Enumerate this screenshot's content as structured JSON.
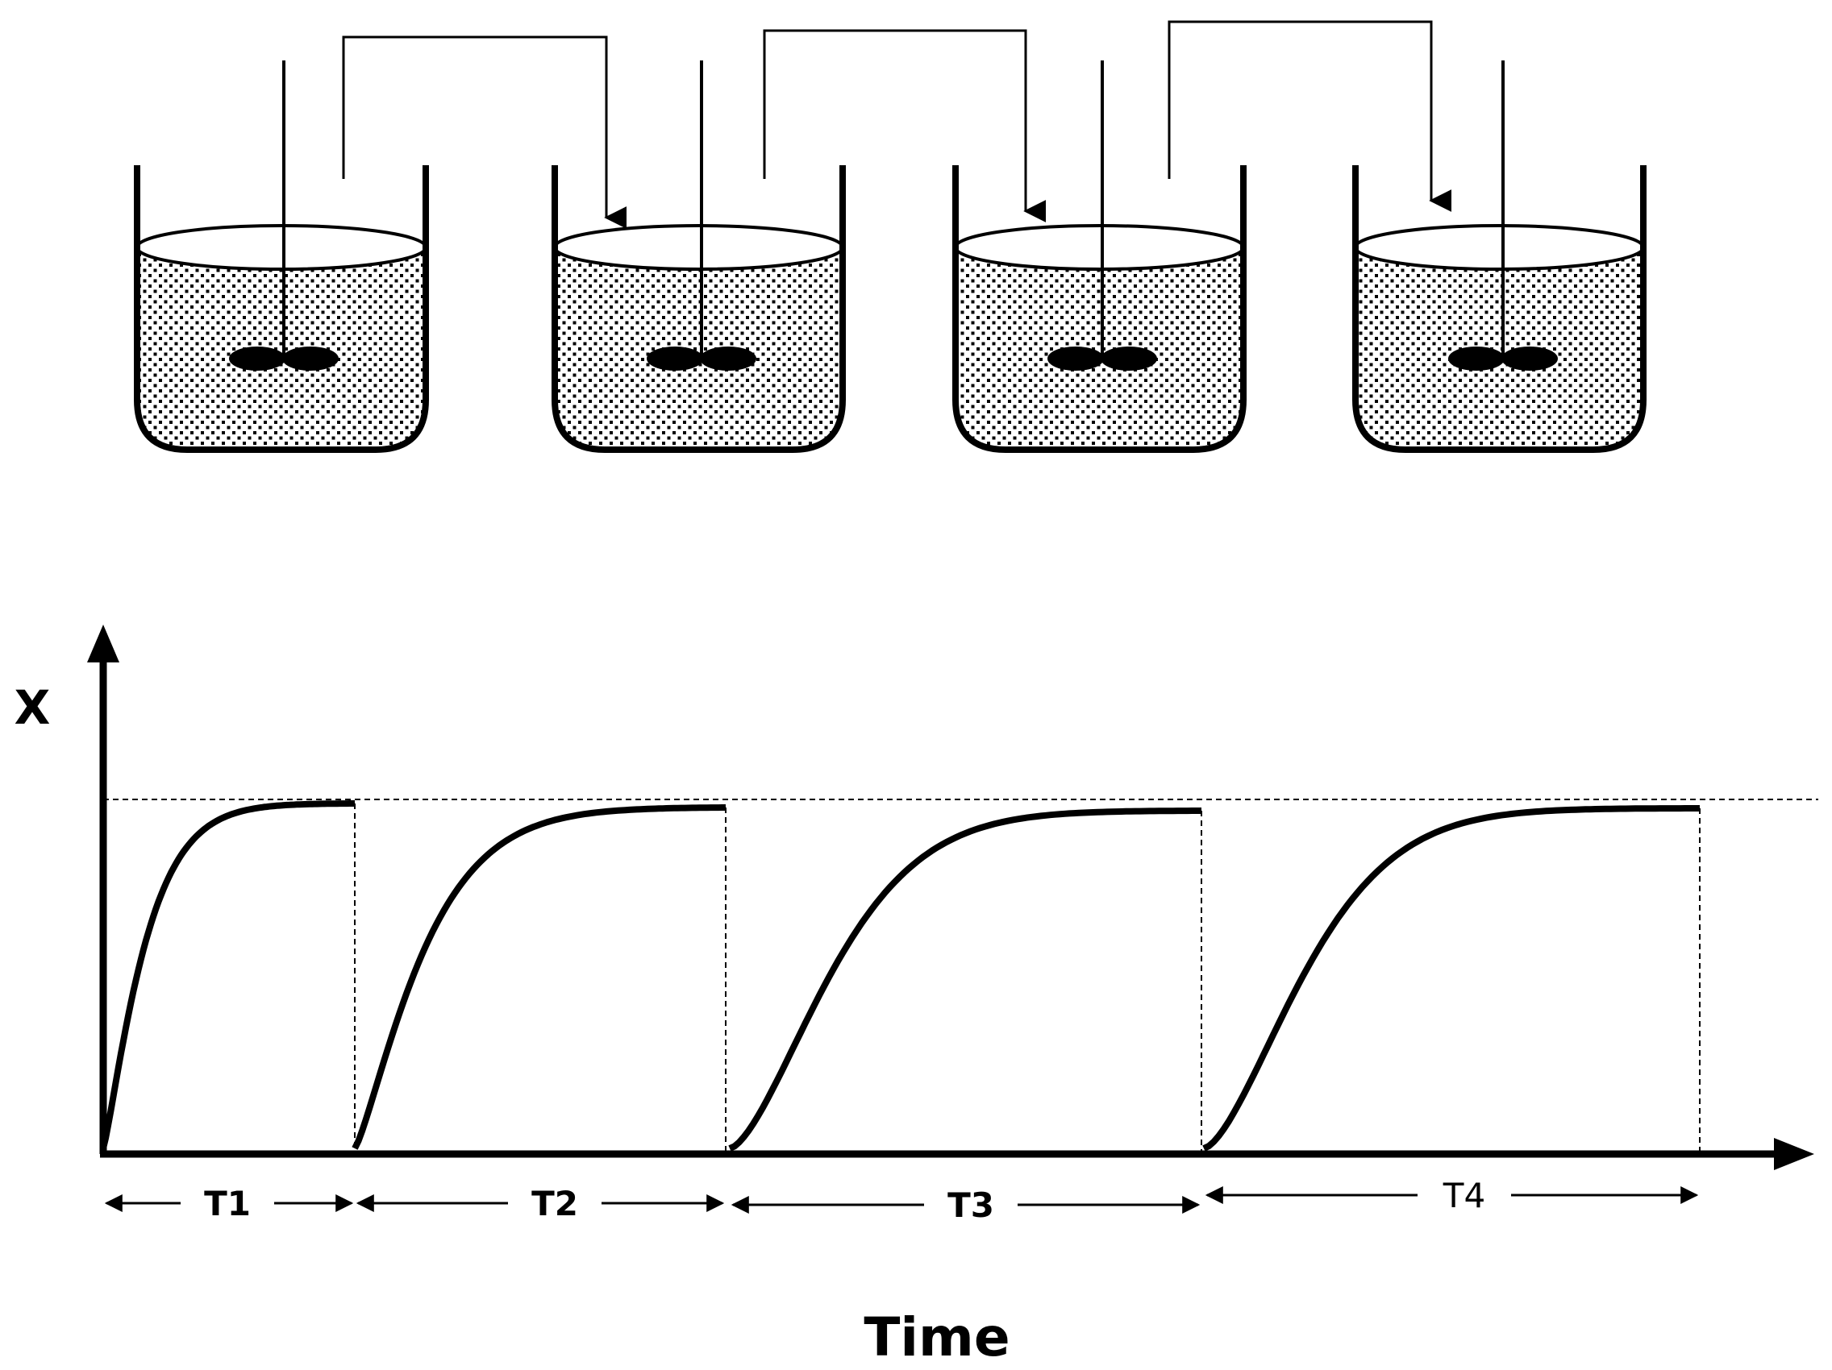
{
  "vessels": [
    {
      "name": "vessel-1"
    },
    {
      "name": "vessel-2"
    },
    {
      "name": "vessel-3"
    },
    {
      "name": "vessel-4"
    }
  ],
  "transfers": [
    {
      "from": 1,
      "to": 2
    },
    {
      "from": 2,
      "to": 3
    },
    {
      "from": 3,
      "to": 4
    }
  ],
  "graph": {
    "y_axis_label": "X",
    "x_axis_label": "Time",
    "intervals": [
      {
        "label": "T1"
      },
      {
        "label": "T2"
      },
      {
        "label": "T3"
      },
      {
        "label": "T4"
      }
    ]
  },
  "colors": {
    "ink": "#000000",
    "background": "#ffffff"
  }
}
